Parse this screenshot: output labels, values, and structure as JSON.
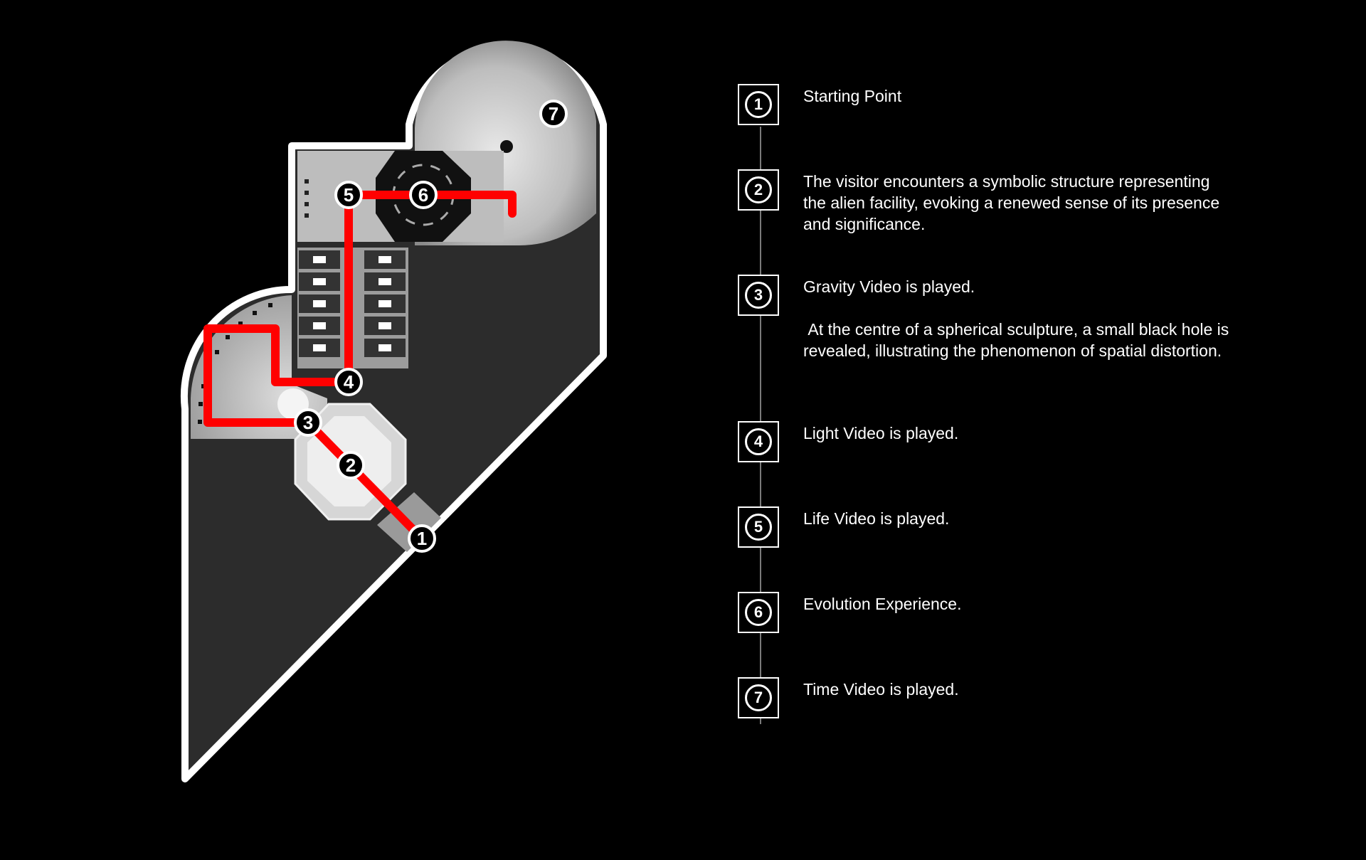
{
  "colors": {
    "background": "#000000",
    "route": "#ff0000",
    "outline": "#ffffff",
    "legend_line": "#7a7a7a",
    "floor": "#2c2c2c"
  },
  "map": {
    "markers": [
      "1",
      "2",
      "3",
      "4",
      "5",
      "6",
      "7"
    ]
  },
  "legend": {
    "steps": [
      {
        "number": "1",
        "lines": [
          "Starting Point"
        ]
      },
      {
        "number": "2",
        "lines": [
          "The visitor encounters a symbolic structure representing the alien facility, evoking a renewed sense of its presence and significance."
        ]
      },
      {
        "number": "3",
        "lines": [
          "Gravity Video is played.",
          "At the centre of a spherical sculpture, a small black hole is revealed, illustrating the phenomenon of spatial distortion."
        ]
      },
      {
        "number": "4",
        "lines": [
          "Light Video is played."
        ]
      },
      {
        "number": "5",
        "lines": [
          "Life Video is played."
        ]
      },
      {
        "number": "6",
        "lines": [
          "Evolution Experience."
        ]
      },
      {
        "number": "7",
        "lines": [
          "Time Video is played."
        ]
      }
    ]
  }
}
